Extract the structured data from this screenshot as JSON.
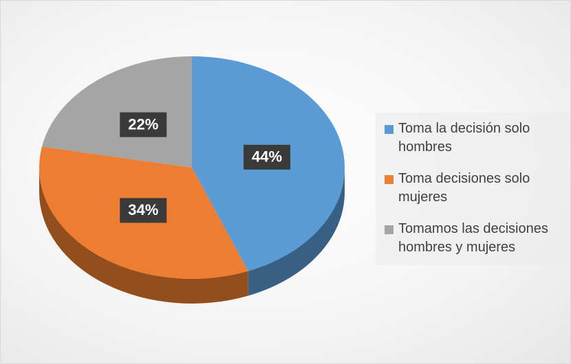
{
  "chart_data": {
    "type": "pie",
    "categories": [
      "Toma la decisión solo hombres",
      "Toma decisiones solo mujeres",
      "Tomamos las decisiones hombres y mujeres"
    ],
    "values": [
      44,
      34,
      22
    ],
    "value_labels": [
      "44%",
      "34%",
      "22%"
    ],
    "colors": [
      "#5b9bd5",
      "#ed7d31",
      "#a5a5a5"
    ],
    "legend": "right"
  }
}
